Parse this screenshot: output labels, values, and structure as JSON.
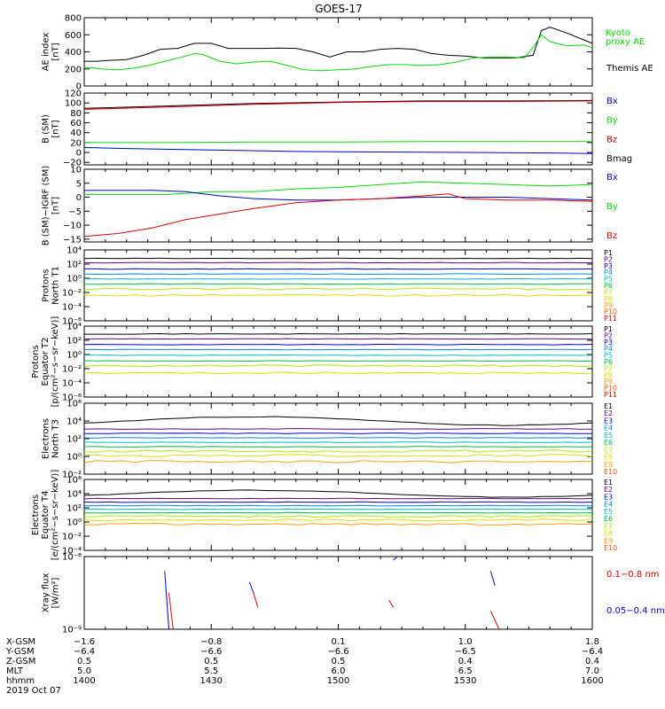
{
  "title": "GOES-17",
  "colors": {
    "axis": "#000000",
    "black": "#000000",
    "green": "#00dd00",
    "red": "#dd0000",
    "blue": "#0000cc",
    "bands": [
      "#000000",
      "#6a0080",
      "#0000cc",
      "#0088ee",
      "#00bbbb",
      "#00bb44",
      "#aaee00",
      "#dddd00",
      "#ffa000",
      "#ff5000",
      "#dd0000"
    ]
  },
  "chart_data": [
    {
      "type": "line",
      "id": "ae",
      "ylabel_lines": [
        "AE index",
        "[nT]"
      ],
      "ylim": [
        0,
        800
      ],
      "yticks": [
        0,
        200,
        400,
        600,
        800
      ],
      "ytick_labels": [
        "0",
        "200",
        "400",
        "600",
        "800"
      ],
      "log": false,
      "legend": [
        {
          "text": "Kyoto",
          "color": "green"
        },
        {
          "text": "proxy AE",
          "color": "green"
        },
        {
          "text": "Themis AE",
          "color": "black"
        }
      ],
      "series": [
        {
          "color": "black",
          "x": [
            0,
            3,
            6,
            10,
            14,
            18,
            22,
            26,
            30,
            34,
            38,
            42,
            46,
            50,
            54,
            58,
            62,
            66,
            70,
            74,
            78,
            82,
            86,
            90,
            94,
            98,
            102,
            106,
            108,
            110,
            114,
            118,
            120
          ],
          "y": [
            290,
            290,
            300,
            310,
            360,
            430,
            440,
            500,
            500,
            440,
            440,
            440,
            445,
            440,
            400,
            340,
            400,
            400,
            430,
            440,
            430,
            380,
            360,
            350,
            330,
            330,
            330,
            360,
            650,
            690,
            620,
            540,
            500
          ]
        },
        {
          "color": "green",
          "x": [
            0,
            4,
            8,
            12,
            16,
            20,
            24,
            26,
            28,
            32,
            36,
            40,
            44,
            48,
            52,
            56,
            60,
            64,
            68,
            72,
            76,
            80,
            84,
            88,
            92,
            96,
            100,
            104,
            106,
            108,
            110,
            114,
            118,
            120
          ],
          "y": [
            220,
            200,
            190,
            210,
            250,
            300,
            350,
            380,
            370,
            290,
            260,
            280,
            290,
            240,
            190,
            180,
            190,
            200,
            230,
            250,
            250,
            240,
            250,
            280,
            330,
            340,
            340,
            330,
            450,
            600,
            520,
            470,
            480,
            450
          ]
        }
      ]
    },
    {
      "type": "line",
      "id": "b_sm",
      "ylabel_lines": [
        "B (SM)",
        "[nT]"
      ],
      "ylim": [
        -25,
        120
      ],
      "yticks": [
        -20,
        0,
        20,
        40,
        60,
        80,
        100,
        120
      ],
      "ytick_labels": [
        "−20",
        "0",
        "20",
        "40",
        "60",
        "80",
        "100",
        "120"
      ],
      "log": false,
      "legend": [
        {
          "text": "Bx",
          "color": "blue"
        },
        {
          "text": "By",
          "color": "green"
        },
        {
          "text": "Bz",
          "color": "red"
        },
        {
          "text": "Bmag",
          "color": "black"
        }
      ],
      "series": [
        {
          "color": "black",
          "x": [
            0,
            20,
            40,
            60,
            80,
            100,
            120
          ],
          "y": [
            89,
            94,
            99,
            102,
            104,
            104,
            105
          ]
        },
        {
          "color": "red",
          "x": [
            0,
            20,
            40,
            60,
            80,
            100,
            120
          ],
          "y": [
            87,
            92,
            97,
            101,
            103,
            103,
            104
          ]
        },
        {
          "color": "green",
          "x": [
            0,
            20,
            40,
            60,
            80,
            100,
            120
          ],
          "y": [
            20,
            20,
            21,
            21,
            22,
            22,
            22
          ]
        },
        {
          "color": "blue",
          "x": [
            0,
            10,
            30,
            50,
            70,
            90,
            110,
            120
          ],
          "y": [
            10,
            8,
            5,
            2,
            1,
            0,
            -1,
            -2
          ]
        }
      ]
    },
    {
      "type": "line",
      "id": "b_igrf",
      "ylabel_lines": [
        "B (SM)−IGRF (SM)",
        "[nT]"
      ],
      "ylim": [
        -16,
        10
      ],
      "yticks": [
        -15,
        -10,
        -5,
        0,
        5,
        10
      ],
      "ytick_labels": [
        "−15",
        "−10",
        "−5",
        "0",
        "5",
        "10"
      ],
      "log": false,
      "legend": [
        {
          "text": "Bx",
          "color": "blue"
        },
        {
          "text": "By",
          "color": "green"
        },
        {
          "text": "Bz",
          "color": "red"
        }
      ],
      "series": [
        {
          "color": "green",
          "x": [
            0,
            10,
            20,
            30,
            40,
            50,
            60,
            70,
            80,
            90,
            100,
            110,
            120
          ],
          "y": [
            1,
            1,
            1,
            2,
            2,
            3,
            3.5,
            4.5,
            5.5,
            5,
            4.5,
            4,
            4.5
          ]
        },
        {
          "color": "blue",
          "x": [
            0,
            8,
            16,
            24,
            32,
            40,
            50,
            60,
            70,
            80,
            90,
            100,
            110,
            120
          ],
          "y": [
            2.5,
            2.5,
            2.5,
            2,
            0.5,
            -0.5,
            -1,
            -1,
            -0.5,
            0,
            0,
            0,
            -0.5,
            -1
          ]
        },
        {
          "color": "red",
          "x": [
            0,
            8,
            16,
            24,
            32,
            40,
            50,
            60,
            70,
            80,
            86,
            90,
            100,
            110,
            120
          ],
          "y": [
            -14,
            -13,
            -11,
            -8,
            -6,
            -4,
            -2,
            -1,
            -0.5,
            0.5,
            1.2,
            -0.5,
            -1,
            -1,
            -1.5
          ]
        }
      ]
    },
    {
      "type": "line",
      "id": "protons_t1",
      "ylabel_lines": [
        "Protons",
        "North T1"
      ],
      "log": true,
      "ylim_exp": [
        -6,
        4
      ],
      "yticks": [
        -6,
        -4,
        -2,
        0,
        2,
        4
      ],
      "ytick_labels": [
        "10⁻⁶",
        "10⁻⁴",
        "10⁻²",
        "10⁰",
        "10²",
        "10⁴"
      ],
      "legend_small": [
        "P1",
        "P2",
        "P3",
        "P4",
        "P5",
        "P6",
        "P7",
        "P8",
        "P9",
        "P10",
        "P11"
      ],
      "levels": [
        2.8,
        2.2,
        1.3,
        0.6,
        -0.1,
        -0.8,
        -1.5,
        -2.4
      ]
    },
    {
      "type": "line",
      "id": "protons_t2",
      "ylabel_lines": [
        "Protons",
        "Equator T2",
        "[p/(cm²−s−sr−keV)]"
      ],
      "log": true,
      "ylim_exp": [
        -6,
        4
      ],
      "yticks": [
        -6,
        -4,
        -2,
        0,
        2,
        4
      ],
      "ytick_labels": [
        "10⁻⁶",
        "10⁻⁴",
        "10⁻²",
        "10⁰",
        "10²",
        "10⁴"
      ],
      "legend_small": [
        "P1",
        "P2",
        "P3",
        "P4",
        "P5",
        "P6",
        "P7",
        "P8",
        "P9",
        "P10",
        "P11"
      ],
      "levels": [
        2.9,
        2.2,
        1.4,
        0.7,
        -0.1,
        -0.9,
        -1.6,
        -2.6
      ]
    },
    {
      "type": "line",
      "id": "electrons_t3",
      "ylabel_lines": [
        "Electrons",
        "North T3"
      ],
      "log": true,
      "ylim_exp": [
        -2,
        6
      ],
      "yticks": [
        -2,
        0,
        2,
        4,
        6
      ],
      "ytick_labels": [
        "10⁻²",
        "10⁰",
        "10²",
        "10⁴",
        "10⁶"
      ],
      "legend_small": [
        "E1",
        "E2",
        "E3",
        "E4",
        "E5",
        "E6",
        "E7",
        "E8",
        "E9",
        "E10"
      ],
      "levels": [
        4.0,
        3.1,
        2.6,
        2.1,
        1.6,
        1.1,
        0.6,
        0.1,
        -0.6
      ]
    },
    {
      "type": "line",
      "id": "electrons_t4",
      "ylabel_lines": [
        "Electrons",
        "Equator T4",
        "[e/(cm²−s−sr−keV)]"
      ],
      "log": true,
      "ylim_exp": [
        -4,
        6
      ],
      "yticks": [
        -4,
        -2,
        0,
        2,
        4,
        6
      ],
      "ytick_labels": [
        "10⁻⁴",
        "10⁻²",
        "10⁰",
        "10²",
        "10⁴",
        "10⁶"
      ],
      "legend_small": [
        "E1",
        "E2",
        "E3",
        "E4",
        "E5",
        "E6",
        "E7",
        "E8",
        "E9",
        "E10"
      ],
      "levels": [
        4.0,
        3.3,
        2.8,
        2.3,
        1.8,
        1.3,
        0.8,
        0.3,
        -0.3
      ]
    },
    {
      "type": "line",
      "id": "xray",
      "ylabel_lines": [
        "Xray flux",
        "[W/m²]"
      ],
      "log": true,
      "ylim_exp": [
        -9,
        -8
      ],
      "yticks": [
        -9,
        -8
      ],
      "ytick_labels": [
        "10⁻⁹",
        "10⁻⁸"
      ],
      "legend": [
        {
          "text": "0.1−0.8 nm",
          "color": "red"
        },
        {
          "text": "0.05−0.4 nm",
          "color": "blue"
        }
      ]
    }
  ],
  "x_axis": {
    "rows": [
      {
        "label": "X-GSM",
        "values": [
          "−1.6",
          "−0.8",
          "0.1",
          "1.0",
          "1.8"
        ]
      },
      {
        "label": "Y-GSM",
        "values": [
          "−6.4",
          "−6.6",
          "−6.6",
          "−6.5",
          "−6.4"
        ]
      },
      {
        "label": "Z-GSM",
        "values": [
          "0.5",
          "0.5",
          "0.5",
          "0.4",
          "0.4"
        ]
      },
      {
        "label": "MLT",
        "values": [
          "5.0",
          "5.5",
          "6.0",
          "6.5",
          "7.0"
        ]
      },
      {
        "label": "hhmm",
        "values": [
          "1400",
          "1430",
          "1500",
          "1530",
          "1600"
        ]
      }
    ],
    "date": "2019 Oct 07",
    "minutes_range": [
      0,
      120
    ],
    "major_minutes": [
      0,
      30,
      60,
      90,
      120
    ]
  }
}
